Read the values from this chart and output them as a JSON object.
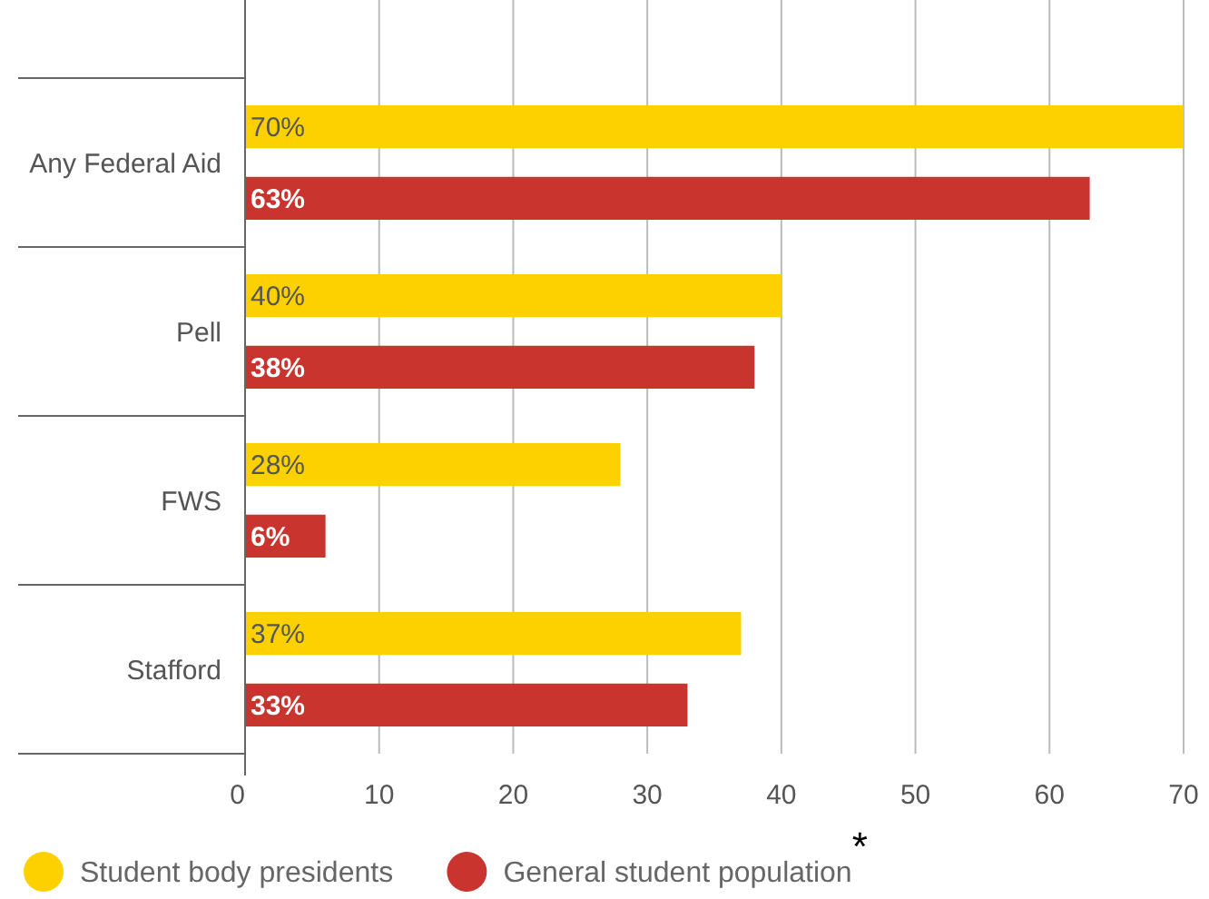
{
  "chart_data": {
    "type": "bar",
    "orientation": "horizontal",
    "categories": [
      "Any Federal Aid",
      "Pell",
      "FWS",
      "Stafford"
    ],
    "series": [
      {
        "name": "Student body presidents",
        "color": "#fdd100",
        "values": [
          70,
          40,
          28,
          37
        ],
        "value_labels": [
          "70%",
          "40%",
          "28%",
          "37%"
        ]
      },
      {
        "name": "General student population$^{*}$",
        "color": "#c9342f",
        "values": [
          63,
          38,
          6,
          33
        ],
        "value_labels": [
          "63%",
          "38%",
          "6%",
          "33%"
        ]
      }
    ],
    "xlim": [
      0,
      70
    ],
    "xticks": [
      0,
      10,
      20,
      30,
      40,
      50,
      60,
      70
    ],
    "grid": "x",
    "legend": "bottom"
  }
}
